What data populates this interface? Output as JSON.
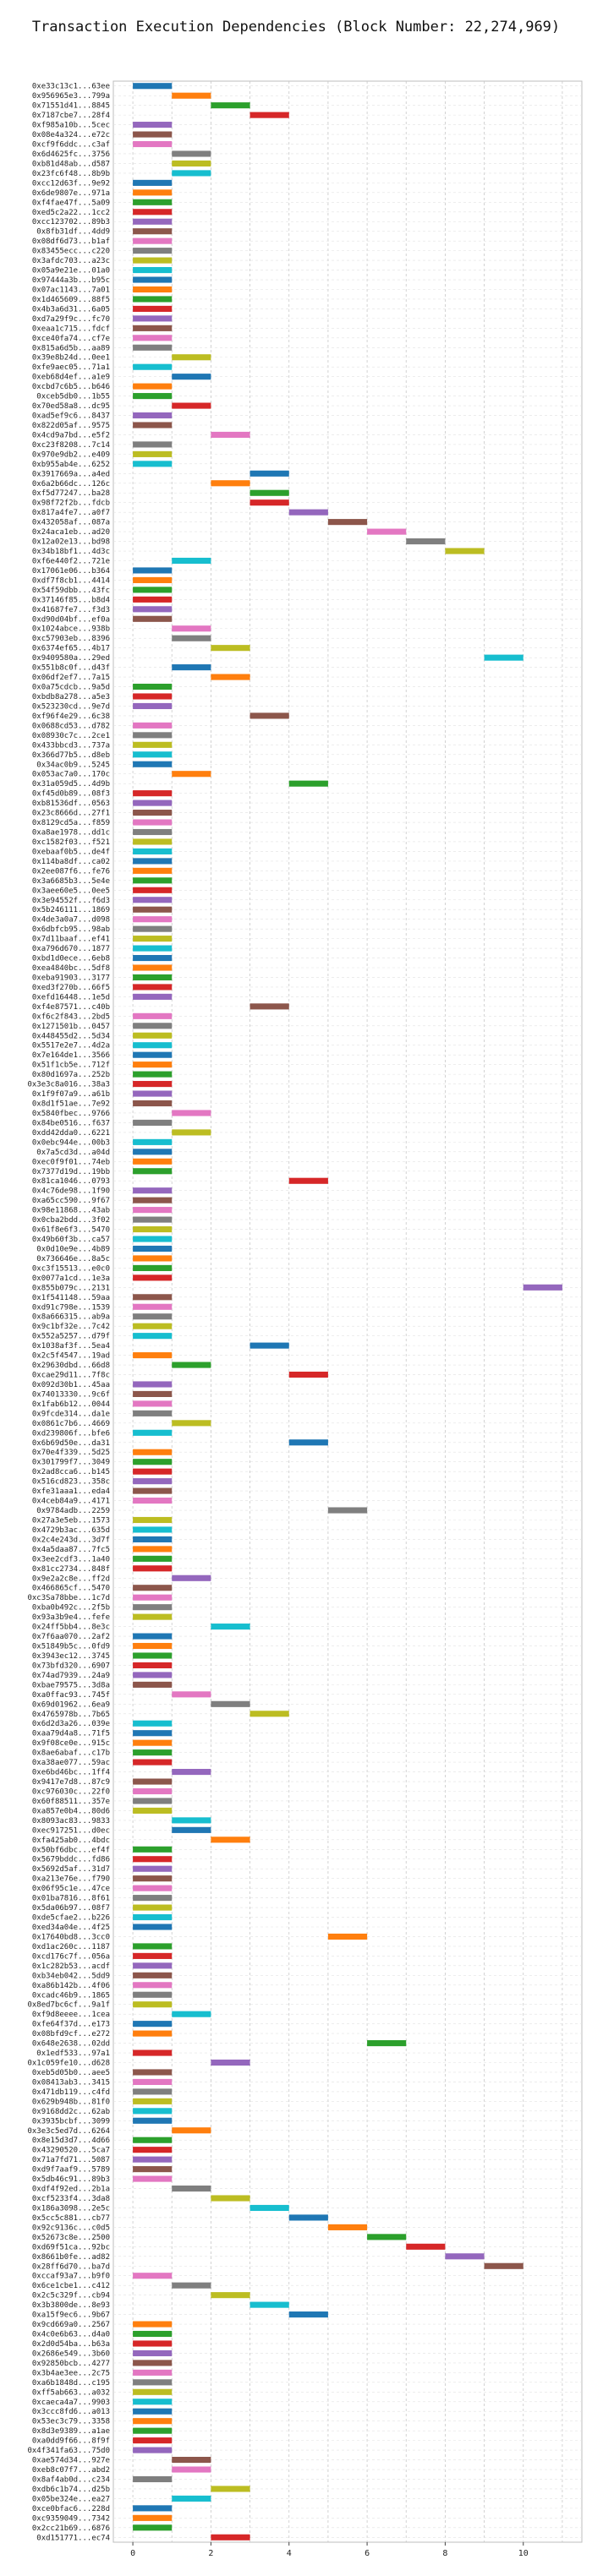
{
  "chart_data": {
    "type": "bar",
    "orientation": "horizontal-gantt",
    "title": "Transaction Execution Dependencies (Block Number: 22,274,969)",
    "xlim": [
      -0.5,
      11.5
    ],
    "x_ticks": [
      0,
      2,
      4,
      6,
      8,
      10
    ],
    "grid": true,
    "legend": "none",
    "bar_span": 1,
    "palette": [
      "#1f77b4",
      "#ff7f0e",
      "#2ca02c",
      "#d62728",
      "#9467bd",
      "#8c564b",
      "#e377c2",
      "#7f7f7f",
      "#bcbd22",
      "#17becf"
    ],
    "rows": [
      {
        "label": "0xe33c13c1...63ee",
        "start": 0
      },
      {
        "label": "0x956965e3...799a",
        "start": 1
      },
      {
        "label": "0x71551d41...8845",
        "start": 2
      },
      {
        "label": "0x7187cbe7...28f4",
        "start": 3
      },
      {
        "label": "0xf985a10b...5cec",
        "start": 0
      },
      {
        "label": "0x08e4a324...e72c",
        "start": 0
      },
      {
        "label": "0xcf9f6ddc...c3af",
        "start": 0
      },
      {
        "label": "0x6d4625fc...3756",
        "start": 1
      },
      {
        "label": "0xb81d48ab...d587",
        "start": 1
      },
      {
        "label": "0x23fc6f48...8b9b",
        "start": 1
      },
      {
        "label": "0xcc12d63f...9e92",
        "start": 0
      },
      {
        "label": "0x6de9807e...971a",
        "start": 0
      },
      {
        "label": "0xf4fae47f...5a09",
        "start": 0
      },
      {
        "label": "0xed5c2a22...1cc2",
        "start": 0
      },
      {
        "label": "0xcc123702...89b3",
        "start": 0
      },
      {
        "label": "0x8fb31df...4dd9",
        "start": 0
      },
      {
        "label": "0x08df6d73...b1af",
        "start": 0
      },
      {
        "label": "0x83455ecc...c220",
        "start": 0
      },
      {
        "label": "0x3afdc703...a23c",
        "start": 0
      },
      {
        "label": "0x05a9e21e...01a0",
        "start": 0
      },
      {
        "label": "0x97444a3b...b95c",
        "start": 0
      },
      {
        "label": "0x07ac1143...7a01",
        "start": 0
      },
      {
        "label": "0x1d465609...88f5",
        "start": 0
      },
      {
        "label": "0x4b3a6d31...6a05",
        "start": 0
      },
      {
        "label": "0xd7a29f9c...fc70",
        "start": 0
      },
      {
        "label": "0xeaa1c715...fdcf",
        "start": 0
      },
      {
        "label": "0xce40fa74...cf7e",
        "start": 0
      },
      {
        "label": "0x815a6d5b...aa89",
        "start": 0
      },
      {
        "label": "0x39e8b24d...0ee1",
        "start": 1
      },
      {
        "label": "0xfe9aec05...71a1",
        "start": 0
      },
      {
        "label": "0xeb68d4ef...a1e9",
        "start": 1
      },
      {
        "label": "0xcbd7c6b5...b646",
        "start": 0
      },
      {
        "label": "0xceb5db0...1b55",
        "start": 0
      },
      {
        "label": "0x70ed58a8...dc95",
        "start": 1
      },
      {
        "label": "0xad5ef9c6...8437",
        "start": 0
      },
      {
        "label": "0x822d05af...9575",
        "start": 0
      },
      {
        "label": "0x4cd9a7bd...e5f2",
        "start": 2
      },
      {
        "label": "0xc23f8208...7c14",
        "start": 0
      },
      {
        "label": "0x970e9db2...e409",
        "start": 0
      },
      {
        "label": "0xb955ab4e...6252",
        "start": 0
      },
      {
        "label": "0x3917669a...a4ed",
        "start": 3
      },
      {
        "label": "0x6a2b66dc...126c",
        "start": 2
      },
      {
        "label": "0xf5d77247...ba28",
        "start": 3
      },
      {
        "label": "0x98f72f2b...fdcb",
        "start": 3
      },
      {
        "label": "0x817a4fe7...a0f7",
        "start": 4
      },
      {
        "label": "0x432058af...087a",
        "start": 5
      },
      {
        "label": "0x24aca1eb...ad20",
        "start": 6
      },
      {
        "label": "0x12a02e13...bd98",
        "start": 7
      },
      {
        "label": "0x34b18bf1...4d3c",
        "start": 8
      },
      {
        "label": "0xf6e440f2...721e",
        "start": 1
      },
      {
        "label": "0x17061e06...b364",
        "start": 0
      },
      {
        "label": "0xdf7f8cb1...4414",
        "start": 0
      },
      {
        "label": "0x54f59dbb...43fc",
        "start": 0
      },
      {
        "label": "0x37146f85...b8d4",
        "start": 0
      },
      {
        "label": "0x41687fe7...f3d3",
        "start": 0
      },
      {
        "label": "0xd90d04bf...ef0a",
        "start": 0
      },
      {
        "label": "0x1024abce...938b",
        "start": 1
      },
      {
        "label": "0xc57903eb...8396",
        "start": 1
      },
      {
        "label": "0x6374ef65...4b17",
        "start": 2
      },
      {
        "label": "0x9409580a...29ed",
        "start": 9
      },
      {
        "label": "0x551b8c0f...d43f",
        "start": 1
      },
      {
        "label": "0x06df2ef7...7a15",
        "start": 2
      },
      {
        "label": "0x0a75cdcb...9a5d",
        "start": 0
      },
      {
        "label": "0xbdb8a278...a5e3",
        "start": 0
      },
      {
        "label": "0x523230cd...9e7d",
        "start": 0
      },
      {
        "label": "0xf96f4e29...6c38",
        "start": 3
      },
      {
        "label": "0x0688cd53...d782",
        "start": 0
      },
      {
        "label": "0x08930c7c...2ce1",
        "start": 0
      },
      {
        "label": "0x433bbcd3...737a",
        "start": 0
      },
      {
        "label": "0x366d77b5...d8eb",
        "start": 0
      },
      {
        "label": "0x34ac0b9...5245",
        "start": 0
      },
      {
        "label": "0x053ac7a0...170c",
        "start": 1
      },
      {
        "label": "0x31a059d5...4d9b",
        "start": 4
      },
      {
        "label": "0xf45d0b89...08f3",
        "start": 0
      },
      {
        "label": "0xb81536df...0563",
        "start": 0
      },
      {
        "label": "0x23c8666d...27f1",
        "start": 0
      },
      {
        "label": "0x8129cd5a...f859",
        "start": 0
      },
      {
        "label": "0xa8ae1978...dd1c",
        "start": 0
      },
      {
        "label": "0xc1582f03...f521",
        "start": 0
      },
      {
        "label": "0xebaaf0b5...de4f",
        "start": 0
      },
      {
        "label": "0x114ba8df...ca02",
        "start": 0
      },
      {
        "label": "0x2ee087f6...fe76",
        "start": 0
      },
      {
        "label": "0x3a6685b3...5e4e",
        "start": 0
      },
      {
        "label": "0x3aee60e5...0ee5",
        "start": 0
      },
      {
        "label": "0x3e94552f...f6d3",
        "start": 0
      },
      {
        "label": "0x5b246111...1869",
        "start": 0
      },
      {
        "label": "0x4de3a0a7...d098",
        "start": 0
      },
      {
        "label": "0x6dbfcb95...98ab",
        "start": 0
      },
      {
        "label": "0x7d11baaf...ef41",
        "start": 0
      },
      {
        "label": "0xa796d670...1877",
        "start": 0
      },
      {
        "label": "0xbd1d0ece...6eb8",
        "start": 0
      },
      {
        "label": "0xea4840bc...5df8",
        "start": 0
      },
      {
        "label": "0xeba91903...3177",
        "start": 0
      },
      {
        "label": "0xed3f270b...66f5",
        "start": 0
      },
      {
        "label": "0xefd16448...1e5d",
        "start": 0
      },
      {
        "label": "0xf4e87571...c40b",
        "start": 3
      },
      {
        "label": "0xf6c2f843...2bd5",
        "start": 0
      },
      {
        "label": "0x1271501b...0457",
        "start": 0
      },
      {
        "label": "0x448455d2...5d34",
        "start": 0
      },
      {
        "label": "0x5517e2e7...4d2a",
        "start": 0
      },
      {
        "label": "0x7e164de1...3566",
        "start": 0
      },
      {
        "label": "0x51f1cb5e...712f",
        "start": 0
      },
      {
        "label": "0x80d1697a...252b",
        "start": 0
      },
      {
        "label": "0x3e3c8a016...38a3",
        "start": 0
      },
      {
        "label": "0x1f9f07a9...a61b",
        "start": 0
      },
      {
        "label": "0x8d1f51ae...7e92",
        "start": 0
      },
      {
        "label": "0x5840fbec...9766",
        "start": 1
      },
      {
        "label": "0x84be0516...f637",
        "start": 0
      },
      {
        "label": "0xdd42dda0...6221",
        "start": 1
      },
      {
        "label": "0x0ebc944e...00b3",
        "start": 0
      },
      {
        "label": "0x7a5cd3d...a04d",
        "start": 0
      },
      {
        "label": "0xec0f9f01...74eb",
        "start": 0
      },
      {
        "label": "0x7377d19d...19bb",
        "start": 0
      },
      {
        "label": "0x81ca1046...0793",
        "start": 4
      },
      {
        "label": "0x4c76de98...1f90",
        "start": 0
      },
      {
        "label": "0xa65cc590...9f67",
        "start": 0
      },
      {
        "label": "0x98e11868...43ab",
        "start": 0
      },
      {
        "label": "0x0cba2bdd...3f02",
        "start": 0
      },
      {
        "label": "0x61f8e6f3...5470",
        "start": 0
      },
      {
        "label": "0x49b60f3b...ca57",
        "start": 0
      },
      {
        "label": "0x0d10e9e...4b89",
        "start": 0
      },
      {
        "label": "0x736646e...8a5c",
        "start": 0
      },
      {
        "label": "0xc3f15513...e0c0",
        "start": 0
      },
      {
        "label": "0x0077a1cd...1e3a",
        "start": 0
      },
      {
        "label": "0x855b079c...2131",
        "start": 10
      },
      {
        "label": "0x1f541148...59aa",
        "start": 0
      },
      {
        "label": "0xd91c798e...1539",
        "start": 0
      },
      {
        "label": "0x8a666315...ab9a",
        "start": 0
      },
      {
        "label": "0x9c1bf32e...7c42",
        "start": 0
      },
      {
        "label": "0x552a5257...d79f",
        "start": 0
      },
      {
        "label": "0x1038af3f...5ea4",
        "start": 3
      },
      {
        "label": "0x2c5f4547...19ad",
        "start": 0
      },
      {
        "label": "0x29630dbd...66d8",
        "start": 1
      },
      {
        "label": "0xcae29d11...7f8c",
        "start": 4
      },
      {
        "label": "0x092d30b1...45aa",
        "start": 0
      },
      {
        "label": "0x74013330...9c6f",
        "start": 0
      },
      {
        "label": "0x1fab6b12...0044",
        "start": 0
      },
      {
        "label": "0x9fcde314...da1e",
        "start": 0
      },
      {
        "label": "0x0861c7b6...4669",
        "start": 1
      },
      {
        "label": "0xd239806f...bfe6",
        "start": 0
      },
      {
        "label": "0x6b69d50e...da31",
        "start": 4
      },
      {
        "label": "0x70e4f339...5d25",
        "start": 0
      },
      {
        "label": "0x301799f7...3049",
        "start": 0
      },
      {
        "label": "0x2ad8cca6...b145",
        "start": 0
      },
      {
        "label": "0x516cd823...358c",
        "start": 0
      },
      {
        "label": "0xfe31aaa1...eda4",
        "start": 0
      },
      {
        "label": "0x4ceb84a9...4171",
        "start": 0
      },
      {
        "label": "0x9784adb...2259",
        "start": 5
      },
      {
        "label": "0x27a3e5eb...1573",
        "start": 0
      },
      {
        "label": "0x4729b3ac...635d",
        "start": 0
      },
      {
        "label": "0x2c4e243d...3d7f",
        "start": 0
      },
      {
        "label": "0x4a5daa87...7fc5",
        "start": 0
      },
      {
        "label": "0x3ee2cdf3...1a40",
        "start": 0
      },
      {
        "label": "0x81cc2734...848f",
        "start": 0
      },
      {
        "label": "0x9e2a2c8e...ff2d",
        "start": 1
      },
      {
        "label": "0x466865cf...5470",
        "start": 0
      },
      {
        "label": "0xc3Sa78bbe...1c7d",
        "start": 0
      },
      {
        "label": "0xba0b492c...2f5b",
        "start": 0
      },
      {
        "label": "0x93a3b9e4...fefe",
        "start": 0
      },
      {
        "label": "0x24ff5bb4...8e3c",
        "start": 2
      },
      {
        "label": "0x7f6aa070...2af2",
        "start": 0
      },
      {
        "label": "0x51849b5c...0fd9",
        "start": 0
      },
      {
        "label": "0x3943ec12...3745",
        "start": 0
      },
      {
        "label": "0x73bfd320...6907",
        "start": 0
      },
      {
        "label": "0x74ad7939...24a9",
        "start": 0
      },
      {
        "label": "0xbae79575...3d8a",
        "start": 0
      },
      {
        "label": "0xa0ffac93...745f",
        "start": 1
      },
      {
        "label": "0x69d01962...6ea9",
        "start": 2
      },
      {
        "label": "0x4765978b...7b65",
        "start": 3
      },
      {
        "label": "0x6d2d3a26...039e",
        "start": 0
      },
      {
        "label": "0xaa79d4a8...71f5",
        "start": 0
      },
      {
        "label": "0x9f08ce0e...915c",
        "start": 0
      },
      {
        "label": "0x8ae6abaf...c17b",
        "start": 0
      },
      {
        "label": "0xa38ae077...59ac",
        "start": 0
      },
      {
        "label": "0xe6bd46bc...1ff4",
        "start": 1
      },
      {
        "label": "0x9417e7d8...87c9",
        "start": 0
      },
      {
        "label": "0xc976030c...22f0",
        "start": 0
      },
      {
        "label": "0x60f88511...357e",
        "start": 0
      },
      {
        "label": "0xa857e0b4...80d6",
        "start": 0
      },
      {
        "label": "0x8093ac83...9833",
        "start": 1
      },
      {
        "label": "0xec917251...d0ec",
        "start": 1
      },
      {
        "label": "0xfa425ab0...4bdc",
        "start": 2
      },
      {
        "label": "0x50bf6dbc...ef4f",
        "start": 0
      },
      {
        "label": "0x5679bddc...fd86",
        "start": 0
      },
      {
        "label": "0x5692d5af...31d7",
        "start": 0
      },
      {
        "label": "0xa213e76e...f790",
        "start": 0
      },
      {
        "label": "0x06f95c1e...47ce",
        "start": 0
      },
      {
        "label": "0x01ba7816...8f61",
        "start": 0
      },
      {
        "label": "0x5da06b97...08f7",
        "start": 0
      },
      {
        "label": "0xde5cfae2...b226",
        "start": 0
      },
      {
        "label": "0xed34a04e...4f25",
        "start": 0
      },
      {
        "label": "0x17640bd8...3cc0",
        "start": 5
      },
      {
        "label": "0xd1ac260c...1187",
        "start": 0
      },
      {
        "label": "0xcd176c7f...056a",
        "start": 0
      },
      {
        "label": "0x1c282b53...acdf",
        "start": 0
      },
      {
        "label": "0xb34eb042...5dd9",
        "start": 0
      },
      {
        "label": "0xa86b142b...4f06",
        "start": 0
      },
      {
        "label": "0xcadc46b9...1865",
        "start": 0
      },
      {
        "label": "0x8ed7bc6cf...9a1f",
        "start": 0
      },
      {
        "label": "0xf9d8eeee...1cea",
        "start": 1
      },
      {
        "label": "0xfe64f37d...e173",
        "start": 0
      },
      {
        "label": "0x08bfd9cf...e272",
        "start": 0
      },
      {
        "label": "0x648e2638...02dd",
        "start": 6
      },
      {
        "label": "0x1edf533...97a1",
        "start": 0
      },
      {
        "label": "0x1c059fe10...d628",
        "start": 2
      },
      {
        "label": "0xeb5d05b0...aee5",
        "start": 0
      },
      {
        "label": "0x08413ab3...3415",
        "start": 0
      },
      {
        "label": "0x471db119...c4fd",
        "start": 0
      },
      {
        "label": "0x629b948b...81f0",
        "start": 0
      },
      {
        "label": "0x9168dd2c...62ab",
        "start": 0
      },
      {
        "label": "0x3935bcbf...3099",
        "start": 0
      },
      {
        "label": "0x3e3c5ed7d...6264",
        "start": 1
      },
      {
        "label": "0x8e15d3d7...4d66",
        "start": 0
      },
      {
        "label": "0x43290520...5ca7",
        "start": 0
      },
      {
        "label": "0x71a7fd71...5087",
        "start": 0
      },
      {
        "label": "0xd9f7aaf9...5789",
        "start": 0
      },
      {
        "label": "0x5db46c91...89b3",
        "start": 0
      },
      {
        "label": "0xdf4f92ed...2b1a",
        "start": 1
      },
      {
        "label": "0xcf5233f4...3da8",
        "start": 2
      },
      {
        "label": "0x186a3098...2e5c",
        "start": 3
      },
      {
        "label": "0x5cc5c881...cb77",
        "start": 4
      },
      {
        "label": "0x92c9136c...c0d5",
        "start": 5
      },
      {
        "label": "0x52673c8e...2500",
        "start": 6
      },
      {
        "label": "0xd69f51ca...92bc",
        "start": 7
      },
      {
        "label": "0x8661b0fe...ad82",
        "start": 8
      },
      {
        "label": "0x28ff6d70...ba7d",
        "start": 9
      },
      {
        "label": "0xccaf93a7...b9f0",
        "start": 0
      },
      {
        "label": "0x6ce1cbe1...c412",
        "start": 1
      },
      {
        "label": "0x2c5c329f...cb94",
        "start": 2
      },
      {
        "label": "0x3b3800de...8e93",
        "start": 3
      },
      {
        "label": "0xa15f9ec6...9b67",
        "start": 4
      },
      {
        "label": "0x9cd669a0...2567",
        "start": 0
      },
      {
        "label": "0x4c0e6b63...d4a0",
        "start": 0
      },
      {
        "label": "0x2d0d54ba...b63a",
        "start": 0
      },
      {
        "label": "0x2686e549...3b60",
        "start": 0
      },
      {
        "label": "0x92850bcb...4277",
        "start": 0
      },
      {
        "label": "0x3b4ae3ee...2c75",
        "start": 0
      },
      {
        "label": "0xa6b1848d...c195",
        "start": 0
      },
      {
        "label": "0xff5ab663...a032",
        "start": 0
      },
      {
        "label": "0xcaeca4a7...9903",
        "start": 0
      },
      {
        "label": "0x3ccc8fd6...a013",
        "start": 0
      },
      {
        "label": "0x53ec3c79...3358",
        "start": 0
      },
      {
        "label": "0x8d3e9389...a1ae",
        "start": 0
      },
      {
        "label": "0xa0dd9f66...8f9f",
        "start": 0
      },
      {
        "label": "0x4f341fa63...75d0",
        "start": 0
      },
      {
        "label": "0xae574d34...927e",
        "start": 1
      },
      {
        "label": "0xeb8c07f7...abd2",
        "start": 1
      },
      {
        "label": "0x8af4ab0d...c234",
        "start": 0
      },
      {
        "label": "0xdb6c1b74...d25b",
        "start": 2
      },
      {
        "label": "0x05be324e...ea27",
        "start": 1
      },
      {
        "label": "0xce0bfac6...228d",
        "start": 0
      },
      {
        "label": "0xc9359049...7342",
        "start": 0
      },
      {
        "label": "0x2cc21b69...6876",
        "start": 0
      },
      {
        "label": "0xd151771...ec74",
        "start": 2
      }
    ]
  }
}
